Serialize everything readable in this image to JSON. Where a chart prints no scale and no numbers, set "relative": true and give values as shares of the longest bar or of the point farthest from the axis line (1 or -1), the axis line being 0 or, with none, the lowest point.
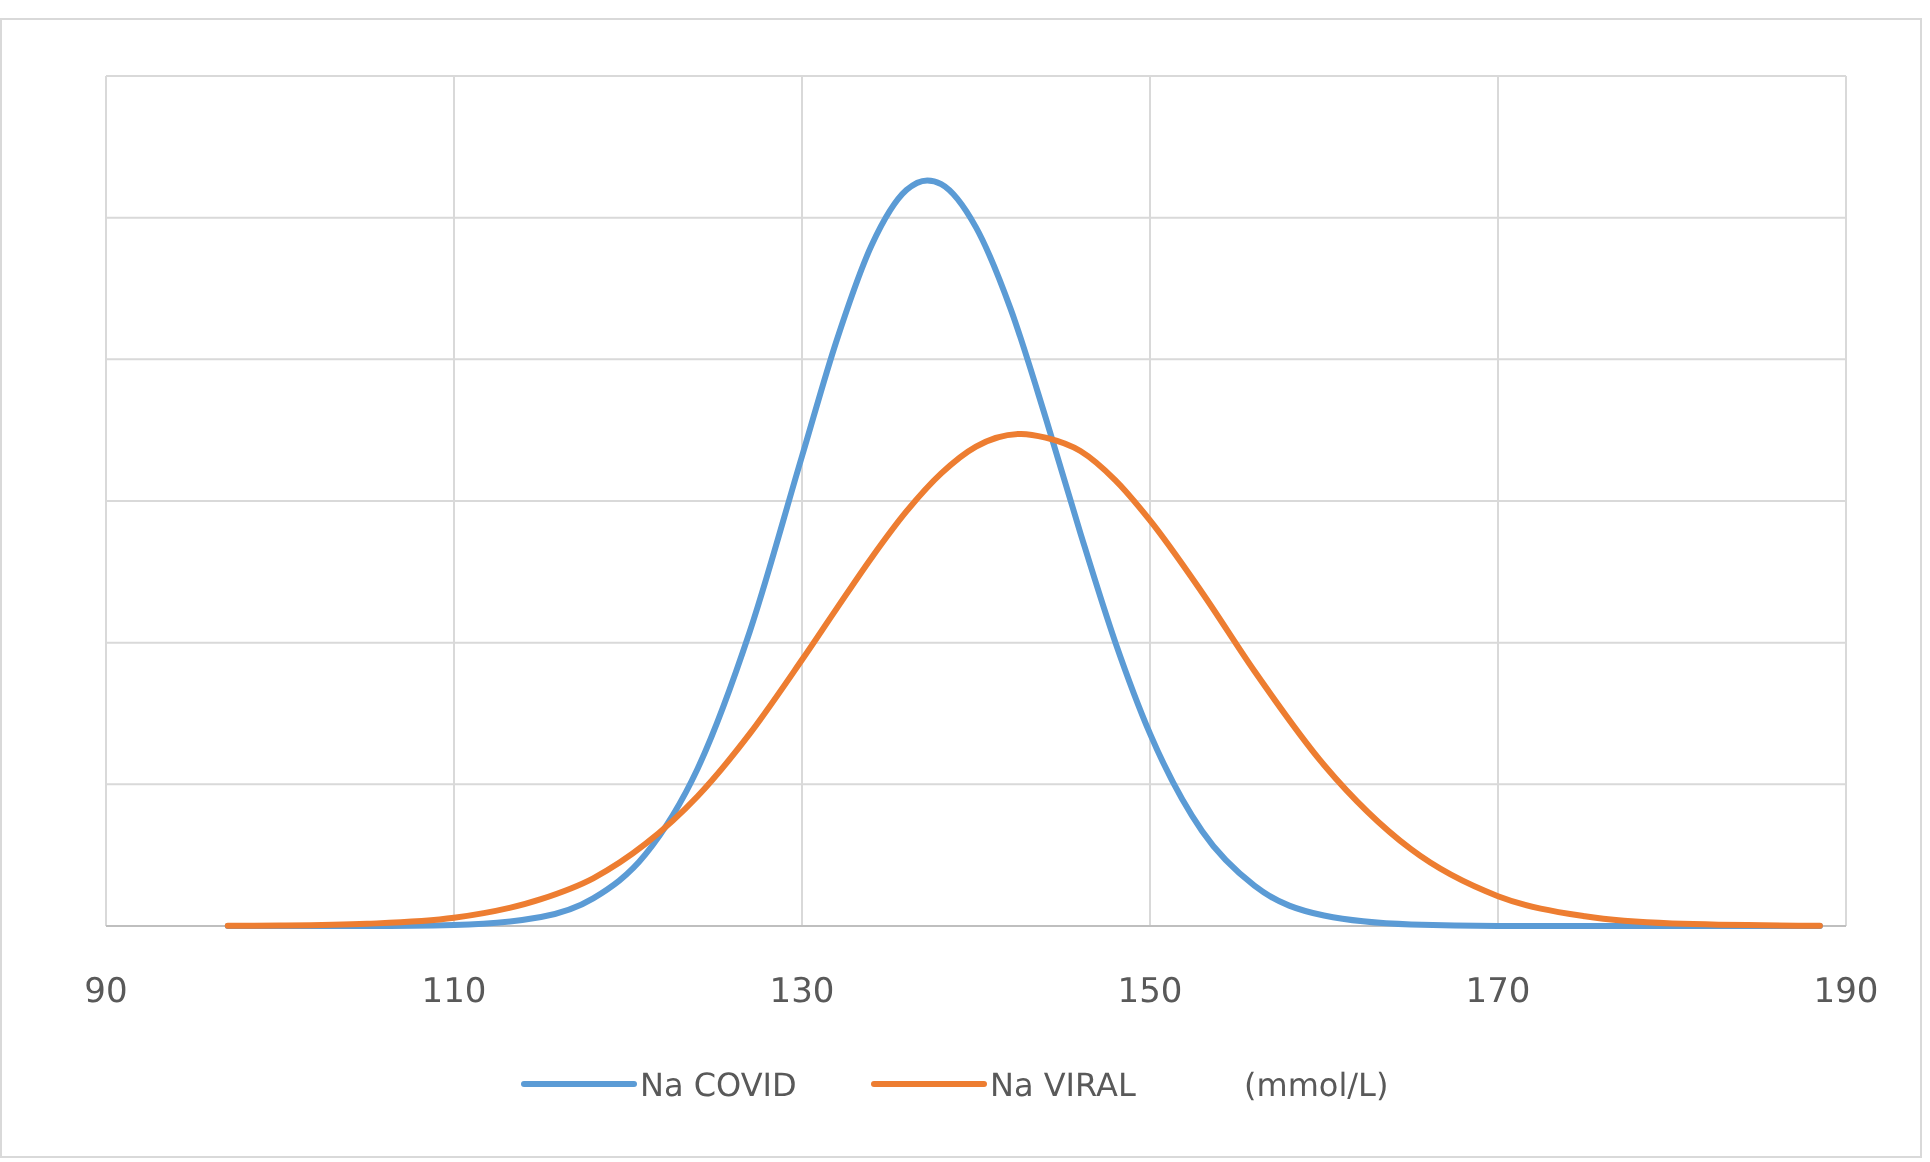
{
  "chart_data": {
    "type": "line",
    "relative": true,
    "xlabel": "(mmol/L)",
    "xlim": [
      90,
      190
    ],
    "xticks": [
      90,
      110,
      130,
      150,
      170,
      190
    ],
    "grid": true,
    "legend": "bottom",
    "marker": "none",
    "line_style": "solid",
    "series": [
      {
        "name": "Na COVID",
        "color": "#5b9bd5",
        "x": [
          97,
          100,
          105,
          110,
          115,
          118,
          121,
          124,
          127,
          130,
          132,
          134,
          136,
          137.2,
          138,
          140,
          142,
          144,
          146,
          148,
          150,
          153,
          156,
          160,
          165,
          170,
          175,
          180,
          188.5
        ],
        "values": [
          0,
          0,
          0.0001,
          0.0014,
          0.012,
          0.037,
          0.096,
          0.211,
          0.395,
          0.63,
          0.786,
          0.913,
          0.987,
          1,
          0.995,
          0.937,
          0.827,
          0.682,
          0.527,
          0.381,
          0.258,
          0.127,
          0.054,
          0.014,
          0.002,
          0,
          0,
          0,
          0
        ]
      },
      {
        "name": "Na VIRAL",
        "color": "#ed7d31",
        "x": [
          97,
          100,
          105,
          110,
          115,
          118,
          121,
          124,
          127,
          130,
          132,
          134,
          136,
          138,
          140,
          142.6,
          144,
          146,
          148,
          150,
          153,
          156,
          160,
          165,
          170,
          175,
          180,
          188.5
        ],
        "values": [
          0.0002,
          0.0006,
          0.003,
          0.011,
          0.036,
          0.064,
          0.11,
          0.174,
          0.258,
          0.357,
          0.426,
          0.494,
          0.556,
          0.607,
          0.643,
          0.66,
          0.655,
          0.637,
          0.598,
          0.544,
          0.447,
          0.342,
          0.216,
          0.103,
          0.04,
          0.013,
          0.0035,
          0.0003
        ]
      }
    ]
  }
}
